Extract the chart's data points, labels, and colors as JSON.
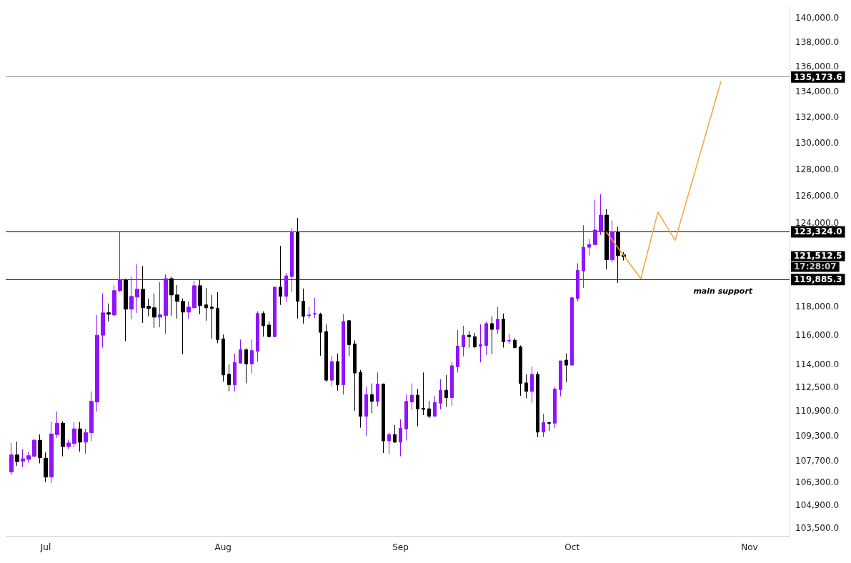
{
  "chart_data": {
    "type": "candlestick",
    "x": [
      "--06-25",
      "--06-26",
      "--06-27",
      "--06-28",
      "--06-29",
      "--06-30",
      "--07-01",
      "--07-02",
      "--07-03",
      "--07-04",
      "--07-05",
      "--07-06",
      "--07-07",
      "--07-08",
      "--07-09",
      "--07-10",
      "--07-11",
      "--07-12",
      "--07-13",
      "--07-14",
      "--07-15",
      "--07-16",
      "--07-17",
      "--07-18",
      "--07-19",
      "--07-20",
      "--07-21",
      "--07-22",
      "--07-23",
      "--07-24",
      "--07-25",
      "--07-26",
      "--07-27",
      "--07-28",
      "--07-29",
      "--07-30",
      "--07-31",
      "--08-01",
      "--08-02",
      "--08-03",
      "--08-04",
      "--08-05",
      "--08-06",
      "--08-07",
      "--08-08",
      "--08-09",
      "--08-10",
      "--08-11",
      "--08-12",
      "--08-13",
      "--08-14",
      "--08-15",
      "--08-16",
      "--08-17",
      "--08-18",
      "--08-19",
      "--08-20",
      "--08-21",
      "--08-22",
      "--08-23",
      "--08-24",
      "--08-25",
      "--08-26",
      "--08-27",
      "--08-28",
      "--08-29",
      "--08-30",
      "--08-31",
      "--09-01",
      "--09-02",
      "--09-03",
      "--09-04",
      "--09-05",
      "--09-06",
      "--09-07",
      "--09-08",
      "--09-09",
      "--09-10",
      "--09-11",
      "--09-12",
      "--09-13",
      "--09-14",
      "--09-15",
      "--09-16",
      "--09-17",
      "--09-18",
      "--09-19",
      "--09-20",
      "--09-21",
      "--09-22",
      "--09-23",
      "--09-24",
      "--09-25",
      "--09-26",
      "--09-27",
      "--09-28",
      "--09-29",
      "--09-30",
      "--10-01",
      "--10-02",
      "--10-03",
      "--10-04",
      "--10-05",
      "--10-06",
      "--10-07",
      "--10-08",
      "--10-09",
      "--10-10"
    ],
    "ohlc": [
      [
        106970,
        108830,
        106790,
        108060
      ],
      [
        108060,
        108920,
        107350,
        107630
      ],
      [
        107670,
        108420,
        107280,
        107810
      ],
      [
        107770,
        108260,
        107560,
        108010
      ],
      [
        107970,
        109120,
        107930,
        109000
      ],
      [
        109000,
        109370,
        107520,
        107890
      ],
      [
        107850,
        108220,
        106340,
        106650
      ],
      [
        106650,
        110190,
        106270,
        109410
      ],
      [
        109370,
        110880,
        109160,
        110100
      ],
      [
        110100,
        110230,
        107970,
        108590
      ],
      [
        108590,
        109040,
        108420,
        108830
      ],
      [
        108790,
        110190,
        108550,
        109740
      ],
      [
        109740,
        110190,
        108260,
        108880
      ],
      [
        108880,
        109740,
        108140,
        109490
      ],
      [
        109490,
        112200,
        108960,
        111540
      ],
      [
        111500,
        117400,
        110880,
        116000
      ],
      [
        116000,
        118900,
        115150,
        117550
      ],
      [
        117550,
        118200,
        116950,
        117450
      ],
      [
        117400,
        119500,
        117300,
        119100
      ],
      [
        119100,
        123300,
        119000,
        119850
      ],
      [
        119850,
        119950,
        115600,
        117800
      ],
      [
        117800,
        120100,
        117100,
        118700
      ],
      [
        118650,
        121000,
        117550,
        119200
      ],
      [
        119200,
        120850,
        116850,
        117900
      ],
      [
        118000,
        118550,
        117300,
        117850
      ],
      [
        117900,
        118900,
        116500,
        117250
      ],
      [
        117250,
        119700,
        116550,
        117400
      ],
      [
        117350,
        120250,
        116100,
        119950
      ],
      [
        119950,
        120100,
        117350,
        118800
      ],
      [
        118800,
        119500,
        117150,
        118350
      ],
      [
        118350,
        118550,
        114700,
        117600
      ],
      [
        117600,
        118350,
        117150,
        117950
      ],
      [
        117900,
        119800,
        117850,
        119450
      ],
      [
        119450,
        119850,
        117450,
        118050
      ],
      [
        118100,
        119300,
        117000,
        117900
      ],
      [
        117950,
        118800,
        115750,
        117850
      ],
      [
        117850,
        119000,
        115450,
        115700
      ],
      [
        115750,
        116050,
        112850,
        113300
      ],
      [
        113350,
        114000,
        112200,
        112650
      ],
      [
        112650,
        114750,
        112200,
        114150
      ],
      [
        114100,
        115700,
        114050,
        115000
      ],
      [
        115000,
        115100,
        112750,
        114050
      ],
      [
        114050,
        115700,
        113400,
        114950
      ],
      [
        114900,
        117650,
        114200,
        117500
      ],
      [
        117500,
        117650,
        115900,
        116650
      ],
      [
        116700,
        116950,
        115850,
        115900
      ],
      [
        115900,
        119350,
        115900,
        119350
      ],
      [
        119350,
        122300,
        118100,
        118700
      ],
      [
        118700,
        120350,
        118300,
        120150
      ],
      [
        120100,
        123600,
        119000,
        123300
      ],
      [
        123300,
        124350,
        117150,
        118350
      ],
      [
        118350,
        119250,
        116800,
        117300
      ],
      [
        117350,
        117950,
        117150,
        117400
      ],
      [
        117450,
        118600,
        117200,
        117500
      ],
      [
        117450,
        117550,
        114600,
        116200
      ],
      [
        116250,
        116750,
        112850,
        112950
      ],
      [
        112950,
        114600,
        112520,
        114200
      ],
      [
        114200,
        114750,
        112250,
        112650
      ],
      [
        112650,
        117450,
        111990,
        116950
      ],
      [
        117000,
        117050,
        114550,
        115350
      ],
      [
        115400,
        115650,
        110920,
        113430
      ],
      [
        113470,
        113630,
        109820,
        110560
      ],
      [
        110560,
        112520,
        109290,
        111990
      ],
      [
        111990,
        112730,
        110760,
        111540
      ],
      [
        111540,
        113470,
        111210,
        112690
      ],
      [
        112690,
        112730,
        108180,
        108960
      ],
      [
        108960,
        109490,
        108100,
        109370
      ],
      [
        109370,
        109980,
        108830,
        108880
      ],
      [
        108880,
        110350,
        107970,
        109780
      ],
      [
        109740,
        111990,
        108990,
        111540
      ],
      [
        111500,
        112730,
        110970,
        111950
      ],
      [
        111950,
        112360,
        109900,
        111050
      ],
      [
        111090,
        113470,
        110640,
        111010
      ],
      [
        111050,
        111580,
        110430,
        110560
      ],
      [
        110560,
        111870,
        110560,
        111460
      ],
      [
        111420,
        113020,
        111010,
        112280
      ],
      [
        112280,
        113300,
        111170,
        111790
      ],
      [
        111790,
        114200,
        111250,
        113920
      ],
      [
        113850,
        116350,
        113470,
        115250
      ],
      [
        115200,
        116650,
        114550,
        116000
      ],
      [
        116000,
        116300,
        115150,
        115900
      ],
      [
        115900,
        116150,
        115100,
        115200
      ],
      [
        115250,
        116750,
        114150,
        115350
      ],
      [
        115300,
        116950,
        114650,
        116800
      ],
      [
        116800,
        117300,
        114700,
        116400
      ],
      [
        116400,
        117950,
        116100,
        117100
      ],
      [
        117100,
        117500,
        115150,
        115550
      ],
      [
        115600,
        116100,
        115400,
        115650
      ],
      [
        115650,
        115800,
        115100,
        115150
      ],
      [
        115200,
        115300,
        111910,
        112730
      ],
      [
        112770,
        113340,
        111740,
        112200
      ],
      [
        112200,
        113880,
        111420,
        113340
      ],
      [
        113340,
        113510,
        109200,
        109530
      ],
      [
        109530,
        110720,
        109200,
        110150
      ],
      [
        110150,
        110190,
        109610,
        110100
      ],
      [
        110110,
        112520,
        109780,
        112360
      ],
      [
        112320,
        114250,
        111870,
        114250
      ],
      [
        114300,
        114750,
        112810,
        113960
      ],
      [
        113960,
        118650,
        113960,
        118600
      ],
      [
        118550,
        121050,
        118350,
        120550
      ],
      [
        120500,
        123800,
        119300,
        122200
      ],
      [
        122200,
        122800,
        121600,
        122400
      ],
      [
        122400,
        125700,
        122350,
        123450
      ],
      [
        123400,
        126100,
        123100,
        124550
      ],
      [
        124550,
        125000,
        120600,
        121300
      ],
      [
        121300,
        124150,
        121100,
        123300
      ],
      [
        123300,
        123700,
        119650,
        121600
      ],
      [
        121650,
        121850,
        121250,
        121512.5
      ]
    ],
    "colors": [
      "#9013fe",
      "#000000",
      "#9013fe",
      "#9013fe",
      "#9013fe",
      "#000000",
      "#000000",
      "#9013fe",
      "#9013fe",
      "#000000",
      "#9013fe",
      "#9013fe",
      "#000000",
      "#9013fe",
      "#9013fe",
      "#9013fe",
      "#9013fe",
      "#000000",
      "#9013fe",
      "#9013fe",
      "#000000",
      "#9013fe",
      "#9013fe",
      "#000000",
      "#000000",
      "#000000",
      "#9013fe",
      "#9013fe",
      "#000000",
      "#000000",
      "#000000",
      "#9013fe",
      "#9013fe",
      "#000000",
      "#000000",
      "#000000",
      "#000000",
      "#000000",
      "#000000",
      "#9013fe",
      "#9013fe",
      "#000000",
      "#9013fe",
      "#9013fe",
      "#000000",
      "#000000",
      "#9013fe",
      "#000000",
      "#9013fe",
      "#9013fe",
      "#000000",
      "#000000",
      "#9013fe",
      "#9013fe",
      "#000000",
      "#000000",
      "#9013fe",
      "#000000",
      "#9013fe",
      "#000000",
      "#000000",
      "#000000",
      "#9013fe",
      "#000000",
      "#9013fe",
      "#000000",
      "#9013fe",
      "#000000",
      "#9013fe",
      "#9013fe",
      "#9013fe",
      "#000000",
      "#000000",
      "#000000",
      "#9013fe",
      "#9013fe",
      "#000000",
      "#9013fe",
      "#9013fe",
      "#9013fe",
      "#000000",
      "#000000",
      "#9013fe",
      "#9013fe",
      "#000000",
      "#9013fe",
      "#000000",
      "#9013fe",
      "#000000",
      "#000000",
      "#000000",
      "#9013fe",
      "#000000",
      "#9013fe",
      "#000000",
      "#9013fe",
      "#9013fe",
      "#000000",
      "#9013fe",
      "#9013fe",
      "#9013fe",
      "#9013fe",
      "#9013fe",
      "#9013fe",
      "#000000",
      "#9013fe",
      "#000000",
      "#000000"
    ],
    "series": [
      {
        "type": "line",
        "x": [
          "--10-07",
          "--10-13",
          "--10-16",
          "--10-19",
          "--10-27"
        ],
        "values": [
          123300,
          119950,
          124790,
          122700,
          134800
        ],
        "color": "#f7a43a"
      }
    ],
    "marker": "none",
    "line_style": "solid",
    "log": true,
    "grid": false,
    "xlim": [
      "--06-24",
      "--11-08"
    ],
    "xticks": [
      {
        "value": "--07-01",
        "label": "Jul"
      },
      {
        "value": "--08-01",
        "label": "Aug"
      },
      {
        "value": "--09-01",
        "label": "Sep"
      },
      {
        "value": "--10-01",
        "label": "Oct"
      },
      {
        "value": "--11-01",
        "label": "Nov"
      }
    ],
    "ylim": [
      103000,
      141000
    ],
    "yticks": [
      {
        "value": 103500,
        "label": "103,500.0"
      },
      {
        "value": 104900,
        "label": "104,900.0"
      },
      {
        "value": 106300,
        "label": "106,300.0"
      },
      {
        "value": 107700,
        "label": "107,700.0"
      },
      {
        "value": 109300,
        "label": "109,300.0"
      },
      {
        "value": 110900,
        "label": "110,900.0"
      },
      {
        "value": 112500,
        "label": "112,500.0"
      },
      {
        "value": 114000,
        "label": "114,000.0"
      },
      {
        "value": 116000,
        "label": "116,000.0"
      },
      {
        "value": 118000,
        "label": "118,000.0"
      },
      {
        "value": 124000,
        "label": "124,000.0"
      },
      {
        "value": 126000,
        "label": "126,000.0"
      },
      {
        "value": 128000,
        "label": "128,000.0"
      },
      {
        "value": 130000,
        "label": "130,000.0"
      },
      {
        "value": 132000,
        "label": "132,000.0"
      },
      {
        "value": 134000,
        "label": "134,000.0"
      },
      {
        "value": 136000,
        "label": "136,000.0"
      },
      {
        "value": 138000,
        "label": "138,000.0"
      },
      {
        "value": 140000,
        "label": "140,000.0"
      }
    ],
    "ref_lines": [
      {
        "axis": "y",
        "value": 135173.6,
        "label": "135,173.6",
        "color": "#888888"
      },
      {
        "axis": "y",
        "value": 123324.0,
        "label": "123,324.0",
        "color": "#000000"
      },
      {
        "axis": "y",
        "value": 119885.3,
        "label": "119,885.3",
        "color": "#12302e"
      }
    ],
    "annotations": [
      "121,512.5",
      "17:28:07",
      "main support"
    ]
  }
}
